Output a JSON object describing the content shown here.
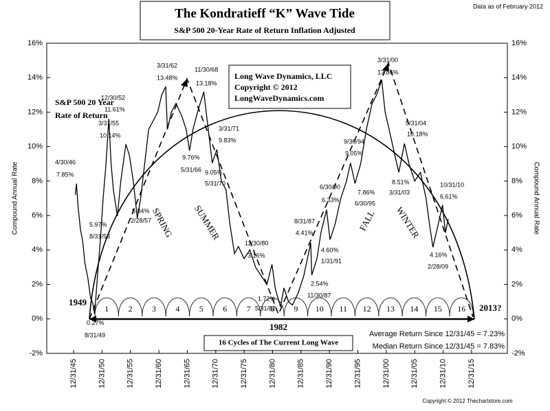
{
  "chart_data": {
    "type": "line",
    "title": "The Kondratieff “K” Wave Tide",
    "subtitle": "S&P 500 20-Year Rate of Return Inflation Adjusted",
    "data_note": "Data as of February 2012",
    "ylabel": "Compound Annual Rate",
    "y2label": "Compound Annual Rate",
    "color": "#000000",
    "x": [
      1946.3,
      1946.5,
      1946.8,
      1947.2,
      1947.6,
      1948,
      1948.5,
      1949,
      1949.4,
      1949.7,
      1950.2,
      1950.7,
      1951.2,
      1951.7,
      1952.2,
      1952.6,
      1953,
      1953.7,
      1954.3,
      1955.2,
      1955.8,
      1956.5,
      1957.2,
      1957.8,
      1958.5,
      1959.2,
      1960,
      1960.8,
      1961.5,
      1962.2,
      1962.5,
      1963.2,
      1964,
      1965,
      1965.8,
      1966.4,
      1967,
      1967.8,
      1968.9,
      1969.5,
      1970.4,
      1971.2,
      1972,
      1972.8,
      1973.5,
      1974.3,
      1975,
      1976,
      1977,
      1978,
      1979,
      1980,
      1980.9,
      1981.5,
      1982.4,
      1983,
      1983.8,
      1984.5,
      1985.5,
      1986.5,
      1987.7,
      1987.9,
      1988.8,
      1989.5,
      1990.5,
      1991.1,
      1992,
      1993,
      1994,
      1994.7,
      1995.5,
      1996.5,
      1997.5,
      1998.5,
      1999.3,
      2000.2,
      2000.8,
      2001.5,
      2002.5,
      2003.2,
      2004.2,
      2005,
      2006,
      2007,
      2008,
      2008.6,
      2009.2,
      2009.8,
      2010.9,
      2011.4,
      2011.9
    ],
    "values": [
      7.2,
      7.85,
      6.5,
      5.2,
      4.5,
      3.2,
      2.4,
      1.2,
      0.9,
      0.27,
      2.5,
      4.5,
      7,
      9,
      11.61,
      9,
      7.5,
      5.97,
      8,
      10.14,
      9.5,
      8,
      5.84,
      7,
      9,
      11,
      11.5,
      12,
      13,
      13.48,
      11,
      12,
      12.5,
      11.8,
      11,
      9.76,
      11,
      12,
      13.18,
      11.5,
      9.05,
      9.83,
      8,
      7.5,
      5.5,
      3.8,
      4.2,
      3.5,
      4,
      3,
      2.5,
      2,
      3.16,
      1.72,
      0.7,
      1.8,
      1,
      0.8,
      1.5,
      2.5,
      4.41,
      2.54,
      3.5,
      5,
      6.33,
      4.6,
      5.5,
      7,
      8,
      9.05,
      7.86,
      9,
      11,
      12.5,
      13,
      13.86,
      12,
      11,
      9.5,
      8.51,
      10.18,
      9,
      8,
      8.5,
      7,
      5.5,
      4.16,
      5,
      6.61,
      5,
      5.8
    ],
    "xlim": [
      1941.28,
      2022.3
    ],
    "xticks": [
      {
        "value": 1946,
        "label": "12/31/45"
      },
      {
        "value": 1951,
        "label": "12/31/50"
      },
      {
        "value": 1956,
        "label": "12/31/55"
      },
      {
        "value": 1961,
        "label": "12/31/60"
      },
      {
        "value": 1966,
        "label": "12/31/65"
      },
      {
        "value": 1971,
        "label": "12/31/70"
      },
      {
        "value": 1976,
        "label": "12/31/75"
      },
      {
        "value": 1981,
        "label": "12/31/80"
      },
      {
        "value": 1986,
        "label": "12/31/85"
      },
      {
        "value": 1991,
        "label": "12/31/90"
      },
      {
        "value": 1996,
        "label": "12/31/95"
      },
      {
        "value": 2001,
        "label": "12/31/00"
      },
      {
        "value": 2006,
        "label": "12/31/05"
      },
      {
        "value": 2011,
        "label": "12/31/10"
      },
      {
        "value": 2016,
        "label": "12/31/15"
      }
    ],
    "ylim": [
      -2,
      16
    ],
    "yticks": [
      {
        "value": -2,
        "label": "-2%"
      },
      {
        "value": 0,
        "label": "0%"
      },
      {
        "value": 2,
        "label": "2%"
      },
      {
        "value": 4,
        "label": "4%"
      },
      {
        "value": 6,
        "label": "6%"
      },
      {
        "value": 8,
        "label": "8%"
      },
      {
        "value": 10,
        "label": "10%"
      },
      {
        "value": 12,
        "label": "12%"
      },
      {
        "value": 14,
        "label": "14%"
      },
      {
        "value": 16,
        "label": "16%"
      }
    ],
    "y2lim": [
      -2,
      16
    ],
    "y2ticks": [
      {
        "value": -2,
        "label": "-2%"
      },
      {
        "value": 0,
        "label": "0%"
      },
      {
        "value": 2,
        "label": "2%"
      },
      {
        "value": 4,
        "label": "4%"
      },
      {
        "value": 6,
        "label": "6%"
      },
      {
        "value": 8,
        "label": "8%"
      },
      {
        "value": 10,
        "label": "10%"
      },
      {
        "value": 12,
        "label": "12%"
      },
      {
        "value": 14,
        "label": "14%"
      },
      {
        "value": 16,
        "label": "16%"
      }
    ],
    "info_box": [
      "Long Wave Dynamics, LLC",
      "Copyright © 2012",
      "LongWaveDynamics.com"
    ],
    "rate_label": [
      "S&P 500 20 Year",
      "Rate  of Return"
    ],
    "seasons": [
      "SPRING",
      "SUMMER",
      "FALL",
      "WINTER"
    ],
    "cycles": [
      "1",
      "2",
      "3",
      "4",
      "5",
      "6",
      "7",
      "8",
      "9",
      "10",
      "11",
      "12",
      "13",
      "14",
      "15",
      "16"
    ],
    "year_labels": [
      "1949",
      "1982",
      "2013?"
    ],
    "cycles_caption": "16 Cycles of The Current Long Wave",
    "stats": [
      "Average Return Since 12/31/45 = 7.23%",
      "Median Return Since 12/31/45 = 7.83%"
    ],
    "annotations": [
      "4/30/46",
      "7.85%",
      "12/30/52",
      "11.61%",
      "3/31/55",
      "10.14%",
      "5.97%",
      "8/31/53",
      "5.84%",
      "2/28/57",
      "3/31/62",
      "13.48%",
      "11/30/68",
      "13.18%",
      "9.76%",
      "5/31/66",
      "3/31/71",
      "9.83%",
      "9.05%",
      "5/31/70",
      "11/30/80",
      "3.16%",
      "1.72%",
      "5/31/82",
      "2.54%",
      "11/30/87",
      "8/31/87",
      "4.41%",
      "6/30/90",
      "6.33%",
      "4.60%",
      "1/31/91",
      "9/30/94",
      "9.05%",
      "7.86%",
      "6/30/95",
      "3/31/00",
      "13.86%",
      "5/31/04",
      "10.18%",
      "8.51%",
      "3/31/03",
      "10/31/10",
      "6.61%",
      "4.16%",
      "2/28/09",
      "0.27%",
      "8/31/49"
    ],
    "copyright": "Copyright © 2012 Thechartstore.com"
  }
}
